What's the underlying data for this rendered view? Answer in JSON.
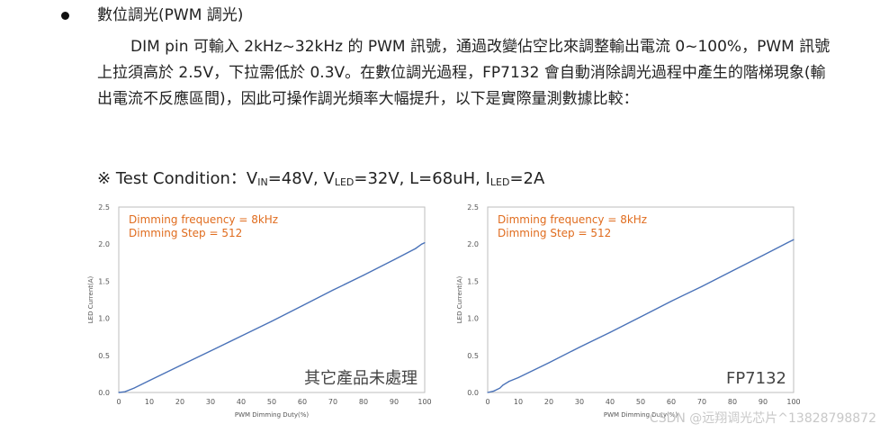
{
  "section": {
    "heading": "數位調光(PWM 調光)",
    "paragraph": [
      "DIM pin 可輸入 2kHz~32kHz 的 PWM 訊號，通過改變佔空比來調整輸出電流 0~100%，",
      "PWM 訊號上拉須高於 2.5V，下拉需低於 0.3V。在數位調光過程，FP7132 會自動消除調光",
      "過程中產生的階梯現象(輸出電流不反應區間)，因此可操作調光頻率大幅提升，以下是實際量",
      "測數據比較："
    ]
  },
  "test_condition": {
    "symbol": "※",
    "label": "Test Condition：",
    "v": "V",
    "vin_sub": "IN",
    "vin_value": "=48V,",
    "vled_sub": "LED",
    "vled_value": "=32V,",
    "l_value": "L=68uH,",
    "i": "I",
    "iled_sub": "LED",
    "iled_value": "=2A"
  },
  "chart_data": [
    {
      "type": "line",
      "xlabel": "PWM Dimming Duty(%)",
      "ylabel": "LED Current(A)",
      "xlim": [
        0,
        100
      ],
      "ylim": [
        0,
        2.5
      ],
      "xticks": [
        "0",
        "10",
        "20",
        "30",
        "40",
        "50",
        "60",
        "70",
        "80",
        "90",
        "100"
      ],
      "yticks": [
        "0.0",
        "0.5",
        "1.0",
        "1.5",
        "2.0",
        "2.5"
      ],
      "annotations": [
        "Dimming frequency = 8kHz",
        "Dimming Step = 512"
      ],
      "tag": "其它產品未處理",
      "color": "#4a72b8",
      "x": [
        0,
        2,
        5,
        10,
        20,
        30,
        40,
        50,
        60,
        70,
        80,
        90,
        97,
        99,
        100
      ],
      "y": [
        0.0,
        0.01,
        0.06,
        0.16,
        0.36,
        0.56,
        0.76,
        0.96,
        1.17,
        1.38,
        1.58,
        1.79,
        1.94,
        2.0,
        2.02
      ]
    },
    {
      "type": "line",
      "xlabel": "PWM Dimming Duty(%)",
      "ylabel": "LED Current(A)",
      "xlim": [
        0,
        100
      ],
      "ylim": [
        0,
        2.5
      ],
      "xticks": [
        "0",
        "10",
        "20",
        "30",
        "40",
        "50",
        "60",
        "70",
        "80",
        "90",
        "100"
      ],
      "yticks": [
        "0.0",
        "0.5",
        "1.0",
        "1.5",
        "2.0",
        "2.5"
      ],
      "annotations": [
        "Dimming frequency = 8kHz",
        "Dimming Step = 512"
      ],
      "tag": "FP7132",
      "color": "#4a72b8",
      "x": [
        0,
        2,
        4,
        5,
        7,
        10,
        20,
        30,
        40,
        50,
        60,
        70,
        80,
        90,
        98,
        100
      ],
      "y": [
        0.0,
        0.02,
        0.06,
        0.1,
        0.15,
        0.2,
        0.4,
        0.61,
        0.81,
        1.02,
        1.23,
        1.43,
        1.64,
        1.85,
        2.02,
        2.06
      ]
    }
  ],
  "watermark": "CSDN @远翔调光芯片^13828798872"
}
